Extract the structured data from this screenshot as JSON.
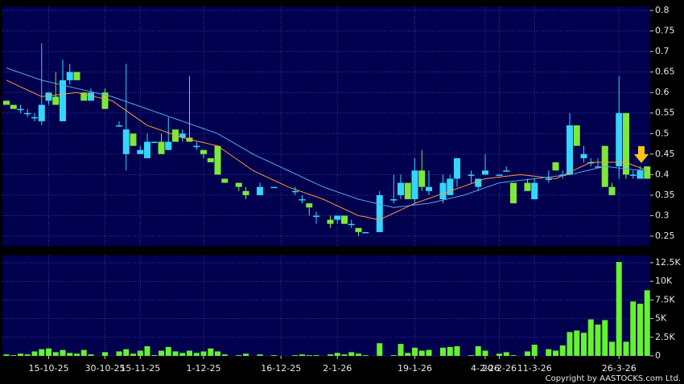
{
  "chart_data": [
    {
      "type": "candlestick",
      "ylim": [
        0.2265,
        0.8098
      ],
      "yticks": [
        0.25,
        0.3,
        0.35,
        0.4,
        0.45,
        0.5,
        0.55,
        0.6,
        0.65,
        0.7,
        0.75,
        0.8
      ],
      "grid": true,
      "up_color": "#33d6ff",
      "down_color": "#7ee83a",
      "open": [
        0.58,
        0.57,
        0.56,
        0.55,
        0.54,
        0.53,
        0.58,
        0.59,
        0.53,
        0.63,
        0.65,
        0.6,
        0.58,
        null,
        0.6,
        null,
        0.52,
        0.45,
        0.5,
        0.45,
        0.44,
        0.48,
        0.48,
        0.46,
        0.51,
        0.49,
        0.49,
        0.47,
        0.46,
        0.44,
        0.47,
        0.39,
        null,
        0.38,
        0.36,
        null,
        0.35,
        null,
        0.37,
        null,
        null,
        0.36,
        0.34,
        0.33,
        0.3,
        null,
        0.29,
        0.29,
        0.3,
        0.28,
        0.27,
        0.26,
        null,
        0.26,
        null,
        0.34,
        0.35,
        0.38,
        0.34,
        0.41,
        0.36,
        null,
        0.34,
        0.35,
        0.39,
        null,
        0.4,
        0.37,
        0.4,
        null,
        0.4,
        0.41,
        0.38,
        null,
        0.38,
        0.34,
        null,
        0.39,
        0.43,
        0.4,
        0.4,
        0.52,
        0.44,
        0.43,
        0.42,
        0.47,
        0.37,
        0.42,
        0.55,
        0.4,
        0.39,
        0.42
      ],
      "high": [
        0.58,
        0.57,
        0.57,
        0.56,
        0.55,
        0.72,
        0.6,
        0.65,
        0.68,
        0.67,
        0.65,
        0.6,
        0.61,
        null,
        0.61,
        null,
        0.53,
        0.67,
        0.5,
        0.47,
        0.5,
        0.48,
        0.5,
        0.54,
        0.51,
        0.51,
        0.64,
        0.48,
        0.46,
        0.44,
        0.47,
        0.39,
        null,
        0.38,
        0.37,
        null,
        0.38,
        null,
        0.37,
        null,
        null,
        0.37,
        0.35,
        0.33,
        0.31,
        null,
        0.3,
        0.3,
        0.3,
        0.29,
        0.27,
        0.26,
        null,
        0.36,
        null,
        0.4,
        0.4,
        0.38,
        0.44,
        0.46,
        0.41,
        null,
        0.4,
        0.4,
        0.44,
        null,
        0.41,
        0.39,
        0.45,
        null,
        0.4,
        0.42,
        0.38,
        null,
        0.39,
        0.39,
        null,
        0.41,
        0.43,
        0.41,
        0.55,
        0.52,
        0.47,
        0.44,
        0.44,
        0.47,
        0.38,
        0.64,
        0.55,
        0.41,
        0.42,
        0.42
      ],
      "low": [
        0.57,
        0.56,
        0.55,
        0.54,
        0.53,
        0.52,
        0.57,
        0.57,
        0.53,
        0.62,
        0.63,
        0.58,
        0.58,
        null,
        0.56,
        null,
        0.52,
        0.41,
        0.47,
        0.45,
        0.44,
        0.48,
        0.45,
        0.46,
        0.48,
        0.48,
        0.48,
        0.46,
        0.44,
        0.43,
        0.4,
        0.38,
        null,
        0.36,
        0.34,
        null,
        0.35,
        null,
        0.37,
        null,
        null,
        0.35,
        0.33,
        0.3,
        0.28,
        null,
        0.27,
        0.28,
        0.28,
        0.27,
        0.25,
        0.26,
        null,
        0.26,
        null,
        0.33,
        0.34,
        0.34,
        0.33,
        0.36,
        0.35,
        null,
        0.33,
        0.35,
        0.37,
        null,
        0.38,
        0.36,
        0.4,
        null,
        0.4,
        0.41,
        0.33,
        null,
        0.36,
        0.34,
        null,
        0.38,
        0.41,
        0.39,
        0.4,
        0.47,
        0.43,
        0.42,
        0.42,
        0.37,
        0.35,
        0.39,
        0.39,
        0.39,
        0.39,
        0.39
      ],
      "close": [
        0.57,
        0.56,
        0.56,
        0.55,
        0.54,
        0.57,
        0.6,
        0.57,
        0.63,
        0.65,
        0.63,
        0.58,
        0.6,
        null,
        0.56,
        null,
        0.52,
        0.51,
        0.47,
        0.46,
        0.48,
        0.48,
        0.45,
        0.48,
        0.48,
        0.5,
        0.48,
        0.47,
        0.45,
        0.43,
        0.4,
        0.38,
        null,
        0.37,
        0.35,
        null,
        0.37,
        null,
        0.37,
        null,
        null,
        0.36,
        0.34,
        0.32,
        0.3,
        null,
        0.28,
        0.3,
        0.28,
        0.28,
        0.26,
        0.26,
        null,
        0.35,
        null,
        0.34,
        0.38,
        0.34,
        0.41,
        0.37,
        0.37,
        null,
        0.38,
        0.39,
        0.44,
        null,
        0.4,
        0.39,
        0.41,
        null,
        0.4,
        0.41,
        0.33,
        null,
        0.36,
        0.38,
        null,
        0.39,
        0.41,
        0.4,
        0.52,
        0.47,
        0.45,
        0.43,
        0.42,
        0.37,
        0.35,
        0.55,
        0.4,
        0.4,
        0.41,
        0.39
      ],
      "lines": [
        {
          "color": "#ff9a33",
          "values": [
            0.63,
            0.622,
            0.614,
            0.606,
            0.598,
            0.59,
            0.592,
            0.594,
            0.596,
            0.598,
            0.6,
            0.596,
            0.592,
            0.588,
            0.584,
            0.58,
            0.568,
            0.556,
            0.544,
            0.532,
            0.52,
            0.514,
            0.508,
            0.502,
            0.496,
            0.49,
            0.486,
            0.482,
            0.478,
            0.474,
            0.47,
            0.458,
            0.446,
            0.434,
            0.422,
            0.41,
            0.402,
            0.394,
            0.386,
            0.378,
            0.37,
            0.364,
            0.358,
            0.352,
            0.346,
            0.34,
            0.332,
            0.324,
            0.316,
            0.308,
            0.3,
            0.297,
            0.293,
            0.29,
            0.298,
            0.306,
            0.314,
            0.322,
            0.33,
            0.336,
            0.342,
            0.348,
            0.354,
            0.36,
            0.366,
            0.372,
            0.378,
            0.384,
            0.39,
            0.392,
            0.394,
            0.396,
            0.398,
            0.4,
            0.398,
            0.396,
            0.394,
            0.392,
            0.39,
            0.398,
            0.406,
            0.414,
            0.422,
            0.43,
            0.43,
            0.43,
            0.43,
            0.43,
            0.43,
            0.423,
            0.417,
            0.41
          ]
        },
        {
          "color": "#5aa8f0",
          "values": [
            0.66,
            0.654,
            0.648,
            0.642,
            0.636,
            0.63,
            0.626,
            0.622,
            0.618,
            0.614,
            0.61,
            0.606,
            0.602,
            0.598,
            0.594,
            0.59,
            0.584,
            0.578,
            0.572,
            0.566,
            0.56,
            0.554,
            0.548,
            0.542,
            0.536,
            0.53,
            0.524,
            0.518,
            0.512,
            0.506,
            0.5,
            0.49,
            0.48,
            0.47,
            0.46,
            0.45,
            0.442,
            0.434,
            0.426,
            0.418,
            0.41,
            0.402,
            0.394,
            0.386,
            0.378,
            0.37,
            0.364,
            0.358,
            0.352,
            0.346,
            0.34,
            0.336,
            0.332,
            0.328,
            0.324,
            0.32,
            0.322,
            0.324,
            0.326,
            0.328,
            0.33,
            0.334,
            0.338,
            0.342,
            0.346,
            0.35,
            0.356,
            0.362,
            0.368,
            0.374,
            0.38,
            0.382,
            0.384,
            0.386,
            0.388,
            0.39,
            0.392,
            0.394,
            0.396,
            0.398,
            0.4,
            0.404,
            0.408,
            0.412,
            0.416,
            0.42,
            0.418,
            0.416,
            0.414,
            0.412,
            0.411,
            0.41
          ]
        }
      ]
    },
    {
      "type": "bar",
      "color": "#66f22e",
      "ylim": [
        0,
        13470
      ],
      "yticks": [
        0,
        {
          "value": 2500,
          "label": "2.5K"
        },
        {
          "value": 5000,
          "label": "5K"
        },
        {
          "value": 7500,
          "label": "7.5K"
        },
        {
          "value": 10000,
          "label": "10K"
        },
        {
          "value": 12500,
          "label": "12.5K"
        }
      ],
      "grid": true,
      "categories": [
        null,
        null,
        null,
        null,
        null,
        null,
        "15-10-25",
        null,
        null,
        null,
        null,
        null,
        null,
        null,
        "30-10-25",
        null,
        null,
        null,
        null,
        "15-11-25",
        null,
        null,
        null,
        null,
        null,
        null,
        null,
        null,
        "1-12-25",
        null,
        null,
        null,
        null,
        null,
        null,
        null,
        null,
        null,
        null,
        "16-12-25",
        null,
        null,
        null,
        null,
        null,
        null,
        null,
        "2-1-26",
        null,
        null,
        null,
        null,
        null,
        null,
        null,
        null,
        null,
        null,
        "19-1-26",
        null,
        null,
        null,
        null,
        null,
        null,
        null,
        null,
        null,
        "4-2-26",
        null,
        "20-2-26",
        null,
        null,
        null,
        null,
        "11-3-26",
        null,
        null,
        null,
        null,
        null,
        null,
        null,
        null,
        null,
        null,
        null,
        "26-3-26",
        null,
        null,
        null,
        null
      ],
      "values": [
        200,
        100,
        300,
        200,
        600,
        900,
        1000,
        500,
        800,
        400,
        300,
        800,
        200,
        null,
        500,
        null,
        600,
        900,
        300,
        700,
        1300,
        100,
        700,
        1200,
        600,
        400,
        700,
        400,
        600,
        1000,
        600,
        200,
        null,
        100,
        300,
        null,
        200,
        null,
        100,
        null,
        null,
        100,
        200,
        100,
        100,
        null,
        200,
        400,
        200,
        500,
        300,
        100,
        null,
        1700,
        null,
        100,
        1600,
        400,
        1100,
        700,
        800,
        null,
        1100,
        1200,
        1300,
        null,
        100,
        1300,
        700,
        null,
        300,
        500,
        100,
        null,
        600,
        1500,
        null,
        900,
        700,
        1400,
        3200,
        3400,
        3100,
        4900,
        4200,
        4800,
        1900,
        12600,
        1900,
        7300,
        7000,
        8800
      ],
      "footnote": "Copyright by AASTOCKS.com Ltd."
    }
  ]
}
